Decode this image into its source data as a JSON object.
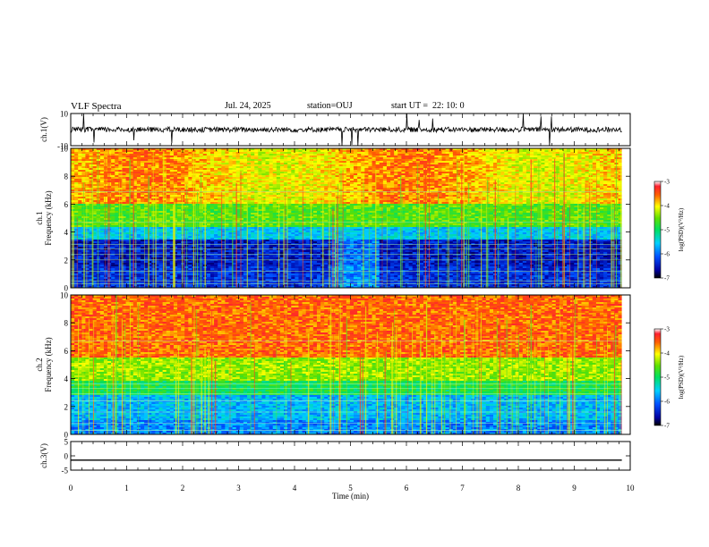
{
  "header": {
    "title": "VLF Spectra",
    "date": "Jul. 24, 2025",
    "station": "station=OUJ",
    "start": "start UT =  22: 10: 0"
  },
  "chart_data": [
    {
      "type": "line",
      "name": "ch1-waveform",
      "ylabel": "ch.1(V)",
      "ylim": [
        -10,
        10
      ],
      "yticks": [
        "10",
        "-10"
      ],
      "baseline": 0,
      "xlim": [
        0,
        9.85
      ]
    },
    {
      "type": "heatmap",
      "name": "ch1-spectrogram",
      "ylabel": "ch.1\nFrequency (kHz)",
      "ylim": [
        0,
        10
      ],
      "yticks": [
        "0",
        "2",
        "4",
        "6",
        "8",
        "10"
      ],
      "xlim": [
        0,
        9.85
      ],
      "colorbar": {
        "label": "log(PSD)(V²/Hz)",
        "ticks": [
          "-3",
          "-4",
          "-5",
          "-6",
          "-7"
        ],
        "range": [
          -7,
          -3
        ]
      }
    },
    {
      "type": "heatmap",
      "name": "ch2-spectrogram",
      "ylabel": "ch.2\nFrequency (kHz)",
      "ylim": [
        0,
        10
      ],
      "yticks": [
        "0",
        "2",
        "4",
        "6",
        "8",
        "10"
      ],
      "xlim": [
        0,
        9.85
      ],
      "colorbar": {
        "label": "log(PSD)(V²/Hz)",
        "ticks": [
          "-3",
          "-4",
          "-5",
          "-6",
          "-7"
        ],
        "range": [
          -7,
          -3
        ]
      }
    },
    {
      "type": "line",
      "name": "ch3-waveform",
      "ylabel": "ch.3(V)",
      "ylim": [
        -5,
        5
      ],
      "yticks": [
        "5",
        "0",
        "-5"
      ],
      "value": -1.5,
      "xlim": [
        0,
        9.85
      ]
    }
  ],
  "xaxis": {
    "label": "Time (min)",
    "range": [
      0,
      10
    ],
    "ticks": [
      "0",
      "1",
      "2",
      "3",
      "4",
      "5",
      "6",
      "7",
      "8",
      "9",
      "10"
    ]
  }
}
